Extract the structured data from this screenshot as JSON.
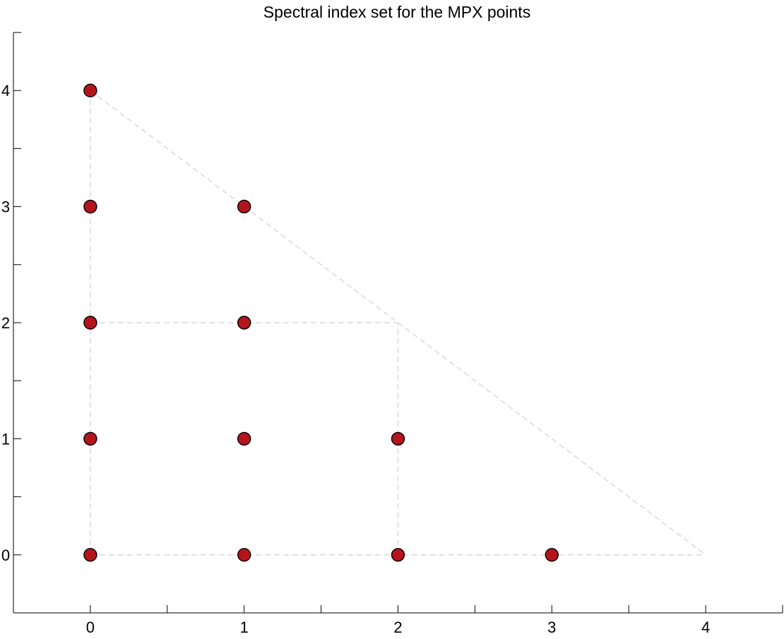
{
  "chart_data": {
    "type": "scatter",
    "title": "Spectral index set for the MPX points",
    "xlabel": "",
    "ylabel": "",
    "xlim": [
      -0.5,
      4.5
    ],
    "ylim": [
      -0.5,
      4.5
    ],
    "x_ticks": [
      0,
      1,
      2,
      3,
      4
    ],
    "y_ticks": [
      0,
      1,
      2,
      3,
      4
    ],
    "x_minor_ticks": [
      0.5,
      1.5,
      2.5,
      3.5,
      4.5
    ],
    "y_minor_ticks": [
      0.5,
      1.5,
      2.5,
      3.5,
      4.5
    ],
    "grid": false,
    "legend": "none",
    "points": [
      {
        "x": 0,
        "y": 0
      },
      {
        "x": 1,
        "y": 0
      },
      {
        "x": 2,
        "y": 0
      },
      {
        "x": 3,
        "y": 0
      },
      {
        "x": 0,
        "y": 1
      },
      {
        "x": 1,
        "y": 1
      },
      {
        "x": 2,
        "y": 1
      },
      {
        "x": 0,
        "y": 2
      },
      {
        "x": 1,
        "y": 2
      },
      {
        "x": 0,
        "y": 3
      },
      {
        "x": 1,
        "y": 3
      },
      {
        "x": 0,
        "y": 4
      }
    ],
    "guide_lines": [
      {
        "x": [
          0,
          4
        ],
        "y": [
          4,
          0
        ]
      },
      {
        "x": [
          0,
          0
        ],
        "y": [
          0,
          4
        ]
      },
      {
        "x": [
          0,
          4
        ],
        "y": [
          0,
          0
        ]
      },
      {
        "x": [
          0,
          2
        ],
        "y": [
          2,
          2
        ]
      },
      {
        "x": [
          2,
          2
        ],
        "y": [
          0,
          2
        ]
      }
    ],
    "colors": {
      "marker_fill": "#b5141c",
      "marker_edge": "#000000",
      "guide": "#d9d9d9"
    }
  }
}
